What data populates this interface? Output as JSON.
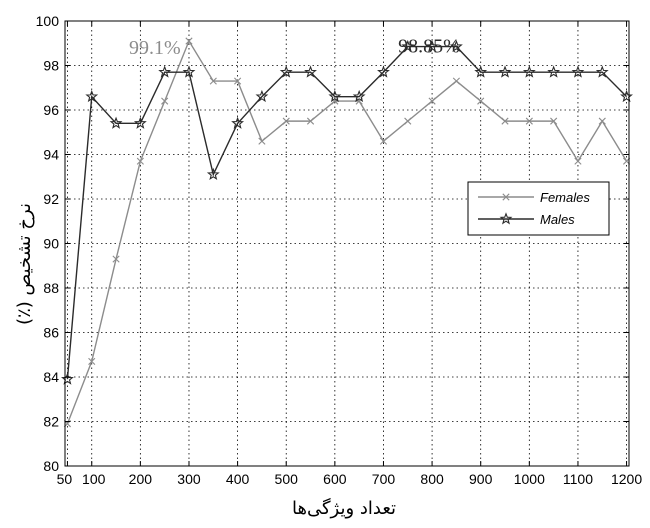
{
  "chart_data": {
    "type": "line",
    "xlabel": "تعداد ویژگی‌ها",
    "ylabel": "نرخ تشخیص (٪)",
    "xlim": [
      45,
      1205
    ],
    "ylim": [
      80,
      100
    ],
    "x_ticks": [
      50,
      100,
      200,
      300,
      400,
      500,
      600,
      700,
      800,
      900,
      1000,
      1100,
      1200
    ],
    "y_ticks": [
      80,
      82,
      84,
      86,
      88,
      90,
      92,
      94,
      96,
      98,
      100
    ],
    "grid": true,
    "legend_position": "right",
    "series": [
      {
        "name": "Females",
        "color": "#8c8c8c",
        "marker": "x",
        "x": [
          50,
          100,
          150,
          200,
          250,
          300,
          350,
          400,
          450,
          500,
          550,
          600,
          650,
          700,
          750,
          800,
          850,
          900,
          950,
          1000,
          1050,
          1100,
          1150,
          1200
        ],
        "y": [
          81.9,
          84.7,
          89.3,
          93.7,
          96.4,
          99.1,
          97.3,
          97.3,
          94.6,
          95.5,
          95.5,
          96.4,
          96.4,
          94.6,
          95.5,
          96.4,
          97.3,
          96.4,
          95.5,
          95.5,
          95.5,
          93.7,
          95.5,
          93.7
        ]
      },
      {
        "name": "Males",
        "color": "#2b2b2b",
        "marker": "star",
        "x": [
          50,
          100,
          150,
          200,
          250,
          300,
          350,
          400,
          450,
          500,
          550,
          600,
          650,
          700,
          750,
          800,
          850,
          900,
          950,
          1000,
          1050,
          1100,
          1150,
          1200
        ],
        "y": [
          83.9,
          96.6,
          95.4,
          95.4,
          97.7,
          97.7,
          93.1,
          95.4,
          96.6,
          97.7,
          97.7,
          96.6,
          96.6,
          97.7,
          98.85,
          98.85,
          98.85,
          97.7,
          97.7,
          97.7,
          97.7,
          97.7,
          97.7,
          96.6
        ]
      }
    ],
    "annotations": [
      {
        "text": "99.1%",
        "x": 300,
        "y": 99.1,
        "color": "#8c8c8c"
      },
      {
        "text": "98.85%",
        "x": 800,
        "y": 98.85,
        "color": "#2b2b2b"
      }
    ]
  }
}
